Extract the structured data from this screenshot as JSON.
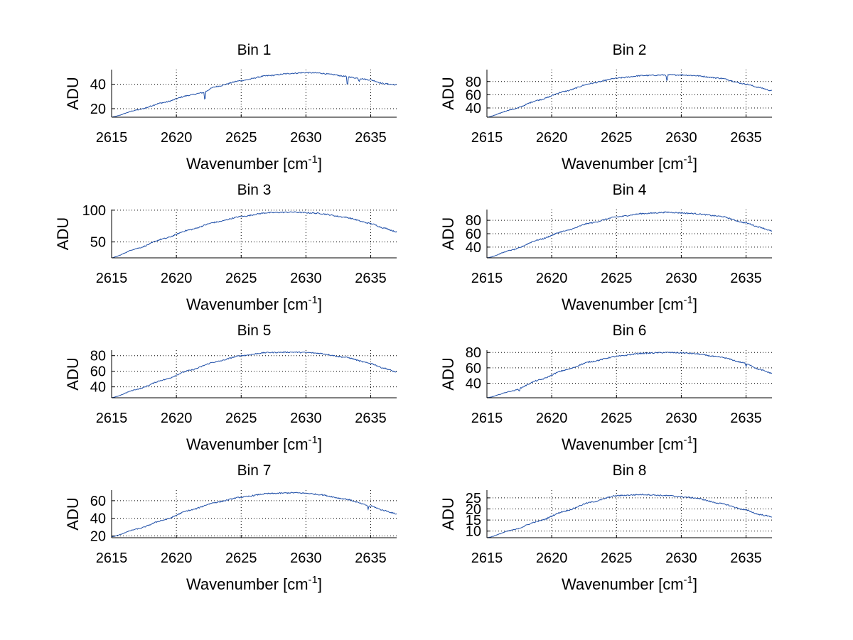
{
  "colors": {
    "line": "#1f4fa8",
    "axis": "#000000",
    "grid": "#000000",
    "background": "#ffffff"
  },
  "chart_data": [
    {
      "type": "line",
      "title": "Bin 1",
      "xlabel": "Wavenumber [cm",
      "xlabel_sup": "-1",
      "xlabel_end": "]",
      "ylabel": "ADU",
      "xlim": [
        2615,
        2637
      ],
      "ylim": [
        13,
        52
      ],
      "xticks": [
        2615,
        2620,
        2625,
        2630,
        2635
      ],
      "yticks": [
        20,
        40
      ],
      "x": [
        2615,
        2617,
        2619,
        2621,
        2622,
        2623,
        2625,
        2627,
        2629,
        2630,
        2631,
        2632,
        2633,
        2634,
        2635,
        2636,
        2637
      ],
      "y": [
        13,
        19,
        25,
        31,
        33,
        38,
        43,
        47,
        49,
        49.5,
        49.2,
        48,
        46.5,
        45,
        43.5,
        40.5,
        39.5
      ],
      "dips": [
        {
          "x": 2622.2,
          "depth": 8
        },
        {
          "x": 2633.2,
          "depth": 9
        },
        {
          "x": 2634.1,
          "depth": 3
        }
      ]
    },
    {
      "type": "line",
      "title": "Bin 2",
      "xlabel": "Wavenumber [cm",
      "xlabel_sup": "-1",
      "xlabel_end": "]",
      "ylabel": "ADU",
      "xlim": [
        2615,
        2637
      ],
      "ylim": [
        26,
        98
      ],
      "xticks": [
        2615,
        2620,
        2625,
        2630,
        2635
      ],
      "yticks": [
        40,
        60,
        80
      ],
      "x": [
        2615,
        2617,
        2619,
        2621,
        2623,
        2625,
        2627,
        2629,
        2630,
        2631,
        2633,
        2635,
        2636,
        2637
      ],
      "y": [
        26,
        38,
        52,
        65,
        77,
        85,
        89,
        90,
        90,
        89,
        85,
        76,
        71,
        66
      ],
      "dips": [
        {
          "x": 2628.9,
          "depth": 12
        }
      ]
    },
    {
      "type": "line",
      "title": "Bin 3",
      "xlabel": "Wavenumber [cm",
      "xlabel_sup": "-1",
      "xlabel_end": "]",
      "ylabel": "ADU",
      "xlim": [
        2615,
        2637
      ],
      "ylim": [
        25,
        101
      ],
      "xticks": [
        2615,
        2620,
        2625,
        2630,
        2635
      ],
      "yticks": [
        50,
        100
      ],
      "x": [
        2615,
        2617,
        2619,
        2621,
        2623,
        2625,
        2627,
        2629,
        2630,
        2631,
        2633,
        2635,
        2636,
        2637
      ],
      "y": [
        25,
        40,
        55,
        69,
        81,
        90,
        96,
        97,
        96,
        95,
        89,
        79,
        72,
        66
      ],
      "dips": []
    },
    {
      "type": "line",
      "title": "Bin 4",
      "xlabel": "Wavenumber [cm",
      "xlabel_sup": "-1",
      "xlabel_end": "]",
      "ylabel": "ADU",
      "xlim": [
        2615,
        2637
      ],
      "ylim": [
        24,
        96
      ],
      "xticks": [
        2615,
        2620,
        2625,
        2630,
        2635
      ],
      "yticks": [
        40,
        60,
        80
      ],
      "x": [
        2615,
        2617,
        2619,
        2621,
        2623,
        2625,
        2627,
        2629,
        2630,
        2631,
        2633,
        2635,
        2636,
        2637
      ],
      "y": [
        24,
        36,
        51,
        64,
        76,
        85,
        90,
        92,
        91,
        90,
        86,
        76,
        70,
        64
      ],
      "dips": []
    },
    {
      "type": "line",
      "title": "Bin 5",
      "xlabel": "Wavenumber [cm",
      "xlabel_sup": "-1",
      "xlabel_end": "]",
      "ylabel": "ADU",
      "xlim": [
        2615,
        2637
      ],
      "ylim": [
        26,
        87
      ],
      "xticks": [
        2615,
        2620,
        2625,
        2630,
        2635
      ],
      "yticks": [
        40,
        60,
        80
      ],
      "x": [
        2615,
        2617,
        2619,
        2621,
        2623,
        2625,
        2627,
        2629,
        2630,
        2631,
        2633,
        2635,
        2636,
        2637
      ],
      "y": [
        26,
        37,
        49,
        61,
        72,
        80,
        84,
        84.5,
        84,
        83,
        78,
        70,
        64,
        59
      ],
      "dips": []
    },
    {
      "type": "line",
      "title": "Bin 6",
      "xlabel": "Wavenumber [cm",
      "xlabel_sup": "-1",
      "xlabel_end": "]",
      "ylabel": "ADU",
      "xlim": [
        2615,
        2637
      ],
      "ylim": [
        21,
        83
      ],
      "xticks": [
        2615,
        2620,
        2625,
        2630,
        2635
      ],
      "yticks": [
        40,
        60,
        80
      ],
      "x": [
        2615,
        2617,
        2619,
        2621,
        2623,
        2625,
        2627,
        2629,
        2630,
        2631,
        2633,
        2635,
        2636,
        2637
      ],
      "y": [
        21,
        30,
        44,
        57,
        68,
        75,
        79,
        80,
        79.5,
        78.5,
        74,
        66,
        58,
        53
      ],
      "dips": [
        {
          "x": 2635,
          "depth": 5
        },
        {
          "x": 2617.5,
          "depth": 3
        }
      ]
    },
    {
      "type": "line",
      "title": "Bin 7",
      "xlabel": "Wavenumber [cm",
      "xlabel_sup": "-1",
      "xlabel_end": "]",
      "ylabel": "ADU",
      "xlim": [
        2615,
        2637
      ],
      "ylim": [
        18,
        72
      ],
      "xticks": [
        2615,
        2620,
        2625,
        2630,
        2635
      ],
      "yticks": [
        20,
        40,
        60
      ],
      "x": [
        2615,
        2617,
        2619,
        2621,
        2623,
        2625,
        2627,
        2629,
        2630,
        2631,
        2633,
        2635,
        2636,
        2637
      ],
      "y": [
        19,
        28,
        38,
        49,
        58,
        64,
        68,
        69,
        68.5,
        67,
        62,
        54,
        49,
        45
      ],
      "dips": [
        {
          "x": 2634.8,
          "depth": 4
        }
      ]
    },
    {
      "type": "line",
      "title": "Bin 8",
      "xlabel": "Wavenumber [cm",
      "xlabel_sup": "-1",
      "xlabel_end": "]",
      "ylabel": "ADU",
      "xlim": [
        2615,
        2637
      ],
      "ylim": [
        7,
        28.5
      ],
      "xticks": [
        2615,
        2620,
        2625,
        2630,
        2635
      ],
      "yticks": [
        10,
        15,
        20,
        25
      ],
      "x": [
        2615,
        2617,
        2619,
        2621,
        2623,
        2625,
        2627,
        2629,
        2630,
        2631,
        2633,
        2635,
        2636,
        2637
      ],
      "y": [
        7,
        10.5,
        14.5,
        19,
        23,
        26,
        26.5,
        26,
        25.5,
        25,
        22.5,
        19.5,
        17.5,
        16.5
      ],
      "dips": []
    }
  ]
}
